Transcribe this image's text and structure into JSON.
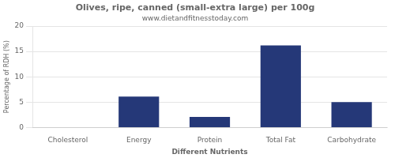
{
  "chart_data": {
    "type": "bar",
    "title": "Olives, ripe, canned (small-extra large) per 100g",
    "subtitle": "www.dietandfitnesstoday.com",
    "xlabel": "Different Nutrients",
    "ylabel": "Percentage of RDH (%)",
    "categories": [
      "Cholesterol",
      "Energy",
      "Protein",
      "Total Fat",
      "Carbohydrate"
    ],
    "values": [
      0,
      6.1,
      2.1,
      16.2,
      5.0
    ],
    "color": "#253878",
    "ylim": [
      0,
      20
    ],
    "yticks": [
      0,
      5,
      10,
      15,
      20
    ],
    "grid": true
  }
}
